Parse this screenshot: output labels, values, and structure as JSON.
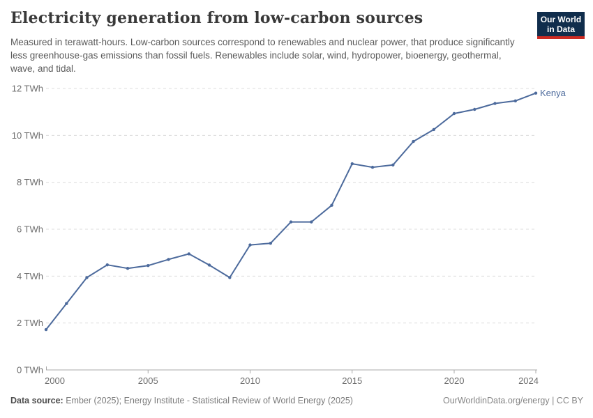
{
  "header": {
    "title": "Electricity generation from low-carbon sources",
    "subtitle": "Measured in terawatt-hours. Low-carbon sources correspond to renewables and nuclear power, that produce significantly less greenhouse-gas emissions than fossil fuels. Renewables include solar, wind, hydropower, bioenergy, geothermal, wave, and tidal.",
    "logo": {
      "line1": "Our World",
      "line2": "in Data",
      "bg_color": "#102d4c",
      "accent_color": "#cc2a22"
    }
  },
  "chart_data": {
    "type": "line",
    "title": "Electricity generation from low-carbon sources",
    "unit": "TWh",
    "xlabel": "",
    "ylabel": "",
    "xlim": [
      2000,
      2024
    ],
    "ylim": [
      0,
      12
    ],
    "grid": "horizontal-dashed",
    "legend_position": "end-of-line-label",
    "x": [
      2000,
      2001,
      2002,
      2003,
      2004,
      2005,
      2006,
      2007,
      2008,
      2009,
      2010,
      2011,
      2012,
      2013,
      2014,
      2015,
      2016,
      2017,
      2018,
      2019,
      2020,
      2021,
      2022,
      2023,
      2024
    ],
    "series": [
      {
        "name": "Kenya",
        "color": "#4C6A9C",
        "values": [
          1.72,
          2.83,
          3.94,
          4.48,
          4.33,
          4.45,
          4.71,
          4.95,
          4.47,
          3.94,
          5.33,
          5.4,
          6.31,
          6.31,
          7.02,
          8.79,
          8.64,
          8.74,
          9.74,
          10.25,
          10.93,
          11.11,
          11.36,
          11.47,
          11.8
        ]
      }
    ],
    "y_ticks": [
      {
        "value": 0,
        "label": "0 TWh"
      },
      {
        "value": 2,
        "label": "2 TWh"
      },
      {
        "value": 4,
        "label": "4 TWh"
      },
      {
        "value": 6,
        "label": "6 TWh"
      },
      {
        "value": 8,
        "label": "8 TWh"
      },
      {
        "value": 10,
        "label": "10 TWh"
      },
      {
        "value": 12,
        "label": "12 TWh"
      }
    ],
    "x_ticks": [
      {
        "value": 2000,
        "label": "2000"
      },
      {
        "value": 2005,
        "label": "2005"
      },
      {
        "value": 2010,
        "label": "2010"
      },
      {
        "value": 2015,
        "label": "2015"
      },
      {
        "value": 2020,
        "label": "2020"
      },
      {
        "value": 2024,
        "label": "2024"
      }
    ],
    "colors": {
      "line": "#4C6A9C",
      "gridline": "#dcdcdc",
      "axis": "#a8a8a8"
    }
  },
  "footer": {
    "source_label": "Data source:",
    "source_text": "Ember (2025); Energy Institute - Statistical Review of World Energy (2025)",
    "license_text": "OurWorldinData.org/energy | CC BY"
  }
}
